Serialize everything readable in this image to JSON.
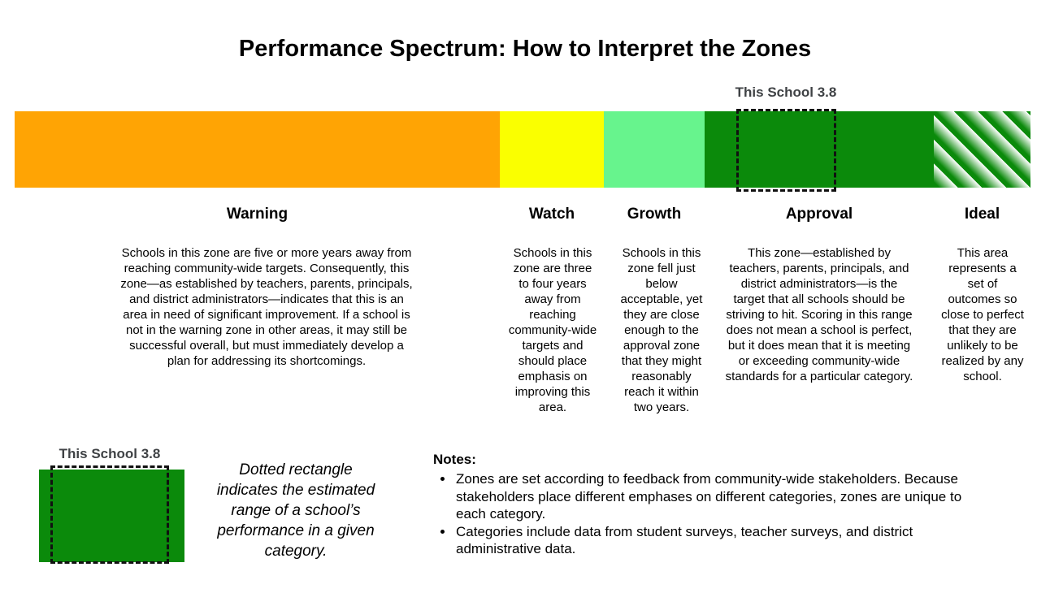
{
  "title": "Performance Spectrum: How to Interpret the Zones",
  "school_marker": {
    "label": "This School 3.8"
  },
  "colors": {
    "marker_label": "#3F4245",
    "dash": "#111111"
  },
  "zones": [
    {
      "name": "Warning",
      "color": "#FFA404",
      "pattern": "solid",
      "description": "Schools in this zone are five or more years away from reaching community-wide targets. Consequently, this zone—as established by teachers, parents, principals, and district administrators—indicates that this is an area in need of significant improvement. If a school is not in the warning zone in other areas, it may still be successful overall, but must immediately develop a plan for addressing its shortcomings."
    },
    {
      "name": "Watch",
      "color": "#FAFF00",
      "pattern": "solid",
      "description": "Schools in this zone are three to four years away from reaching community-wide targets and should place emphasis on improving this area."
    },
    {
      "name": "Growth",
      "color": "#67F48D",
      "pattern": "solid",
      "description": "Schools in this zone fell just below acceptable, yet they are close enough to the approval zone that they might reasonably reach it within two years."
    },
    {
      "name": "Approval",
      "color": "#0B8A0B",
      "pattern": "solid",
      "description": "This zone—established by teachers, parents, principals, and district administrators—is the target that all schools should be striving to hit. Scoring in this range does not mean a school is perfect, but it does mean that it is meeting or exceeding community-wide standards for a particular category."
    },
    {
      "name": "Ideal",
      "color": "#0B8A0B",
      "pattern": "diagonal-stripes",
      "description": "This area represents a set of outcomes so close to perfect that they are unlikely to be realized by any school."
    }
  ],
  "legend": {
    "marker_label": "This School 3.8",
    "caption": "Dotted rectangle indicates the estimated range of a school’s performance in a given category."
  },
  "notes": {
    "heading": "Notes:",
    "items": [
      "Zones are set according to feedback from community-wide stakeholders. Because stakeholders place different emphases on different categories, zones are unique to each category.",
      "Categories include data from student surveys, teacher surveys, and district administrative data."
    ]
  }
}
